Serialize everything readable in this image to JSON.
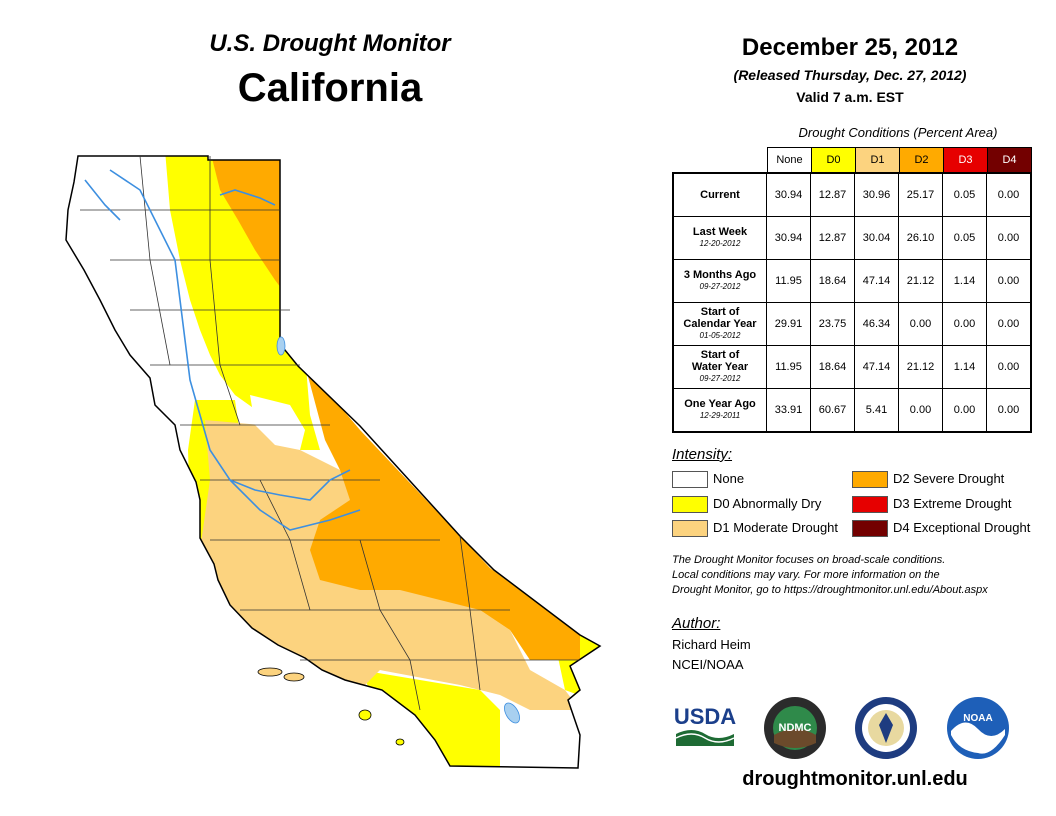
{
  "header": {
    "monitor_title": "U.S. Drought Monitor",
    "state": "California",
    "date": "December 25, 2012",
    "released": "(Released Thursday, Dec. 27, 2012)",
    "valid": "Valid 7 a.m. EST"
  },
  "table": {
    "title": "Drought Conditions (Percent Area)",
    "columns": [
      {
        "label": "None",
        "color": "#ffffff",
        "text_color": "#000000"
      },
      {
        "label": "D0",
        "color": "#ffff00",
        "text_color": "#000000"
      },
      {
        "label": "D1",
        "color": "#fcd37f",
        "text_color": "#000000"
      },
      {
        "label": "D2",
        "color": "#ffaa00",
        "text_color": "#000000"
      },
      {
        "label": "D3",
        "color": "#e60000",
        "text_color": "#ffffff"
      },
      {
        "label": "D4",
        "color": "#730000",
        "text_color": "#ffffff"
      }
    ],
    "rows": [
      {
        "label1": "Current",
        "label2": "",
        "date": "",
        "values": [
          "30.94",
          "12.87",
          "30.96",
          "25.17",
          "0.05",
          "0.00"
        ]
      },
      {
        "label1": "Last Week",
        "label2": "",
        "date": "12-20-2012",
        "values": [
          "30.94",
          "12.87",
          "30.04",
          "26.10",
          "0.05",
          "0.00"
        ]
      },
      {
        "label1": "3 Months Ago",
        "label2": "",
        "date": "09-27-2012",
        "values": [
          "11.95",
          "18.64",
          "47.14",
          "21.12",
          "1.14",
          "0.00"
        ]
      },
      {
        "label1": "Start of",
        "label2": "Calendar Year",
        "date": "01-05-2012",
        "values": [
          "29.91",
          "23.75",
          "46.34",
          "0.00",
          "0.00",
          "0.00"
        ]
      },
      {
        "label1": "Start of",
        "label2": "Water Year",
        "date": "09-27-2012",
        "values": [
          "11.95",
          "18.64",
          "47.14",
          "21.12",
          "1.14",
          "0.00"
        ]
      },
      {
        "label1": "One Year Ago",
        "label2": "",
        "date": "12-29-2011",
        "values": [
          "33.91",
          "60.67",
          "5.41",
          "0.00",
          "0.00",
          "0.00"
        ]
      }
    ]
  },
  "legend": {
    "title": "Intensity:",
    "items": [
      {
        "label": "None",
        "color": "#ffffff"
      },
      {
        "label": "D0 Abnormally Dry",
        "color": "#ffff00"
      },
      {
        "label": "D1 Moderate Drought",
        "color": "#fcd37f"
      },
      {
        "label": "D2 Severe Drought",
        "color": "#ffaa00"
      },
      {
        "label": "D3 Extreme Drought",
        "color": "#e60000"
      },
      {
        "label": "D4 Exceptional Drought",
        "color": "#730000"
      }
    ]
  },
  "note": {
    "line1": "The Drought Monitor focuses on broad-scale conditions.",
    "line2": "Local conditions may vary. For more information on the",
    "line3": "Drought Monitor, go to https://droughtmonitor.unl.edu/About.aspx"
  },
  "author": {
    "title": "Author:",
    "name": "Richard Heim",
    "org": "NCEI/NOAA"
  },
  "logos": {
    "usda": "USDA",
    "ndmc": "NDMC",
    "noaa": "NOAA"
  },
  "website": "droughtmonitor.unl.edu",
  "colors": {
    "none": "#ffffff",
    "d0": "#ffff00",
    "d1": "#fcd37f",
    "d2": "#ffaa00",
    "d3": "#e60000",
    "d4": "#730000",
    "river": "#3d8fe0",
    "lake": "#a8d0f0"
  }
}
